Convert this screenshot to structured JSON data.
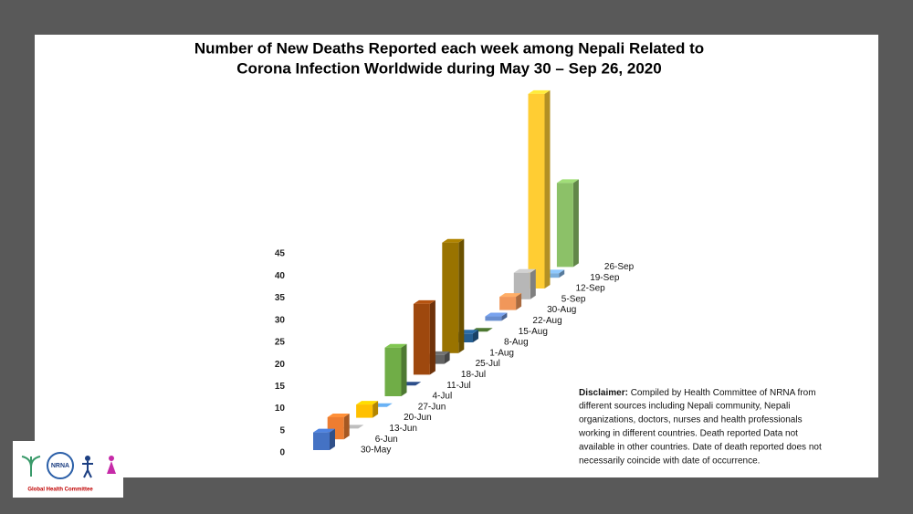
{
  "chart_data": {
    "type": "bar3d",
    "title": [
      "Number of New Deaths Reported each week among Nepali Related to",
      "Corona Infection Worldwide during May 30 – Sep 26, 2020"
    ],
    "categories": [
      "30-May",
      "6-Jun",
      "13-Jun",
      "20-Jun",
      "27-Jun",
      "4-Jul",
      "11-Jul",
      "18-Jul",
      "25-Jul",
      "1-Aug",
      "8-Aug",
      "15-Aug",
      "22-Aug",
      "30-Aug",
      "5-Sep",
      "12-Sep",
      "19-Sep",
      "26-Sep"
    ],
    "values": [
      4,
      5,
      0,
      3,
      0,
      11,
      0,
      16,
      2,
      25,
      2,
      0,
      1,
      3,
      6,
      44,
      1,
      19
    ],
    "colors": [
      "#4472c4",
      "#ed7d31",
      "#a5a5a5",
      "#ffc000",
      "#5b9bd5",
      "#70ad47",
      "#264478",
      "#9e480e",
      "#636363",
      "#997300",
      "#255e91",
      "#43682b",
      "#698ed0",
      "#f1975a",
      "#b7b7b7",
      "#ffcd33",
      "#7cafdd",
      "#8cc168"
    ],
    "ylim": [
      0,
      45
    ],
    "yticks": [
      0,
      5,
      10,
      15,
      20,
      25,
      30,
      35,
      40,
      45
    ],
    "disclaimer": {
      "label": "Disclaimer:",
      "lines": [
        "Compiled by Health Committee of NRNA from",
        "different sources including Nepali community,  Nepali",
        "organizations, doctors, nurses and health professionals",
        "working in different countries. Death reported  Data not",
        "available in other countries. Date of death reported  does not",
        "necessarily coincide with date of occurrence."
      ]
    }
  },
  "logo": {
    "name": "NRNA",
    "caption": "Global Health Committee"
  }
}
